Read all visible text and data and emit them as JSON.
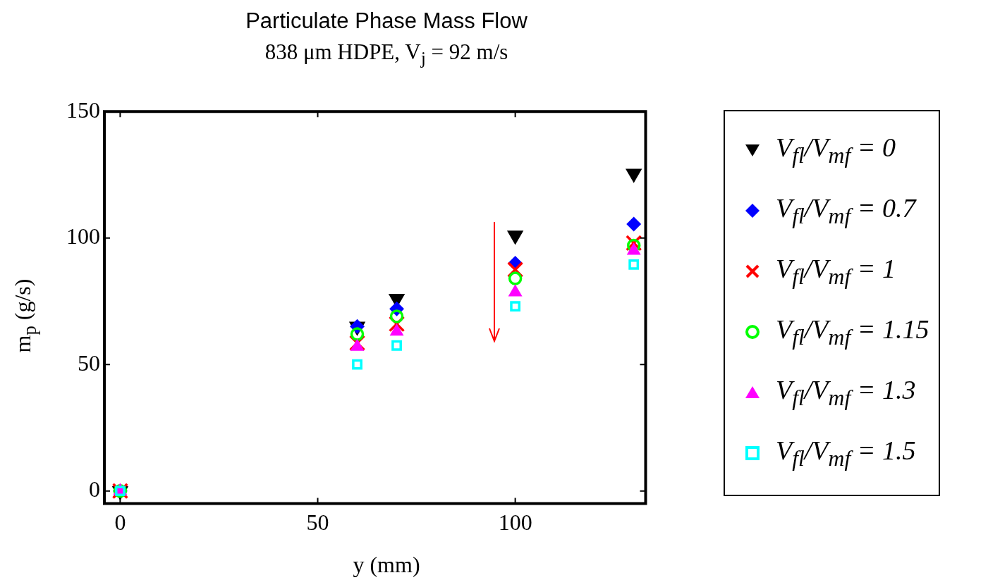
{
  "chart_data": {
    "type": "scatter",
    "title": "Particulate Phase Mass Flow",
    "subtitle": "838 μm HDPE, V$_{j}$ = 92 m/s",
    "xlabel": "y (mm)",
    "ylabel": "m$_{p}$ (g/s)",
    "xlim": [
      -4,
      133
    ],
    "xticks": [
      0,
      50,
      100
    ],
    "ylim": [
      -5,
      150
    ],
    "yticks": [
      0,
      50,
      100,
      150
    ],
    "grid": false,
    "legend": "right",
    "series": [
      {
        "name": "V$_{fl}$/V$_{mf}$ = 0",
        "color": "#000000",
        "marker": "triangle-down",
        "x": [
          0,
          60,
          70,
          100,
          130
        ],
        "values": [
          0,
          65,
          76,
          101,
          125.5
        ]
      },
      {
        "name": "V$_{fl}$/V$_{mf}$ = 0.7",
        "color": "#0000ff",
        "marker": "diamond",
        "x": [
          0,
          60,
          70,
          100,
          130
        ],
        "values": [
          0,
          65,
          72,
          90,
          105.5
        ]
      },
      {
        "name": "V$_{fl}$/V$_{mf}$ = 1",
        "color": "#ff0000",
        "marker": "cross",
        "x": [
          0,
          60,
          70,
          100,
          130
        ],
        "values": [
          0,
          58.5,
          66,
          87.5,
          98
        ]
      },
      {
        "name": "V$_{fl}$/V$_{mf}$ = 1.15",
        "color": "#00ff00",
        "marker": "circle",
        "x": [
          0,
          60,
          70,
          100,
          130
        ],
        "values": [
          0,
          62,
          69,
          84,
          97
        ]
      },
      {
        "name": "V$_{fl}$/V$_{mf}$ = 1.3",
        "color": "#ff00ff",
        "marker": "triangle",
        "x": [
          0,
          60,
          70,
          100,
          130
        ],
        "values": [
          0,
          57,
          63,
          78.5,
          95
        ]
      },
      {
        "name": "V$_{fl}$/V$_{mf}$ = 1.5",
        "color": "#00ffff",
        "marker": "square",
        "x": [
          0,
          60,
          70,
          100,
          130
        ],
        "values": [
          0,
          50,
          57.5,
          73,
          89.5
        ]
      }
    ]
  }
}
